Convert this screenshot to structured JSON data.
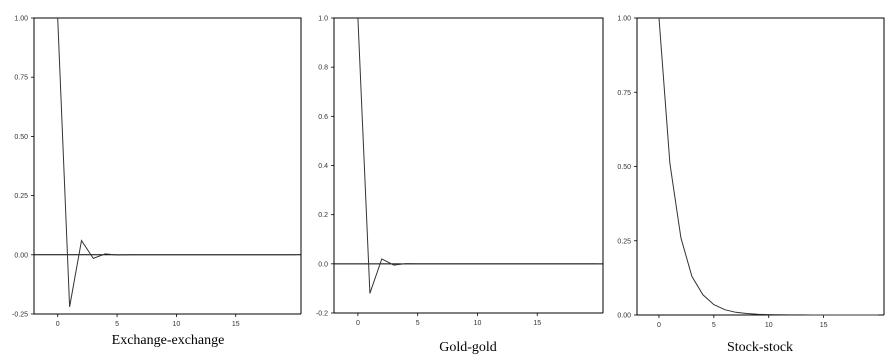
{
  "chart_data": [
    {
      "type": "line",
      "title": "Exchange-exchange",
      "xlabel": "",
      "ylabel": "",
      "xlim": [
        -2,
        20.5
      ],
      "ylim": [
        -0.25,
        1.0
      ],
      "x_ticks": [
        0,
        5,
        10,
        15
      ],
      "y_ticks": [
        "-0.25",
        "0.00",
        "0.25",
        "0.50",
        "0.75",
        "1.00"
      ],
      "series": [
        {
          "x": [
            0,
            1,
            2,
            3,
            4,
            5,
            6,
            7,
            8,
            9,
            10,
            11,
            12,
            13,
            14,
            15,
            16,
            17,
            18,
            19,
            20
          ],
          "values": [
            1.0,
            -0.22,
            0.06,
            -0.015,
            0.004,
            -0.001,
            0.0,
            0,
            0,
            0,
            0,
            0,
            0,
            0,
            0,
            0,
            0,
            0,
            0,
            0,
            0
          ]
        }
      ]
    },
    {
      "type": "line",
      "title": "Gold-gold",
      "xlabel": "",
      "ylabel": "",
      "xlim": [
        -2,
        20.5
      ],
      "ylim": [
        -0.2,
        1.0
      ],
      "x_ticks": [
        0,
        5,
        10,
        15
      ],
      "y_ticks": [
        "-0.2",
        "0.0",
        "0.2",
        "0.4",
        "0.6",
        "0.8",
        "1.0"
      ],
      "series": [
        {
          "x": [
            0,
            1,
            2,
            3,
            4,
            5,
            6,
            7,
            8,
            9,
            10,
            11,
            12,
            13,
            14,
            15,
            16,
            17,
            18,
            19,
            20
          ],
          "values": [
            1.0,
            -0.12,
            0.02,
            -0.005,
            0.001,
            0.0,
            0,
            0,
            0,
            0,
            0,
            0,
            0,
            0,
            0,
            0,
            0,
            0,
            0,
            0,
            0
          ]
        }
      ]
    },
    {
      "type": "line",
      "title": "Stock-stock",
      "xlabel": "",
      "ylabel": "",
      "xlim": [
        -2,
        20.5
      ],
      "ylim": [
        0.0,
        1.0
      ],
      "x_ticks": [
        0,
        5,
        10,
        15
      ],
      "y_ticks": [
        "0.00",
        "0.25",
        "0.50",
        "0.75",
        "1.00"
      ],
      "series": [
        {
          "x": [
            0,
            1,
            2,
            3,
            4,
            5,
            6,
            7,
            8,
            9,
            10,
            11,
            12,
            13,
            14,
            15,
            16,
            17,
            18,
            19,
            20
          ],
          "values": [
            1.0,
            0.51,
            0.26,
            0.13,
            0.068,
            0.035,
            0.018,
            0.009,
            0.005,
            0.0024,
            0.0012,
            0.0006,
            0.0003,
            0.0002,
            0.0001,
            0,
            0,
            0,
            0,
            0,
            0
          ]
        }
      ]
    }
  ]
}
